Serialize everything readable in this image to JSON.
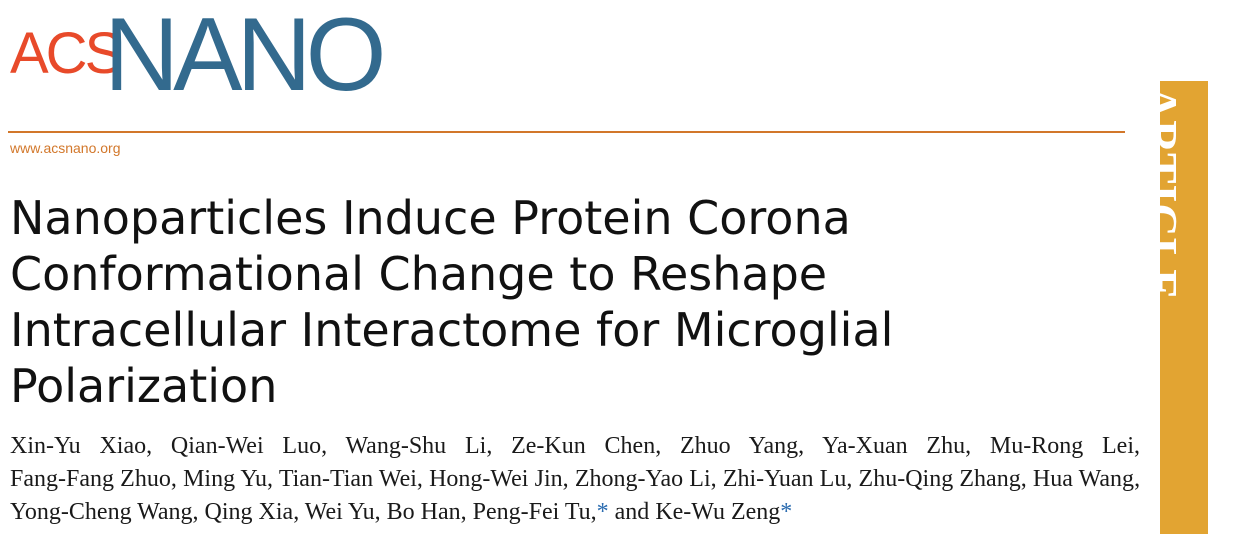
{
  "header": {
    "logo_acs": "ACS",
    "logo_nano": "NANO",
    "url": "www.acsnano.org",
    "section_tab": "ARTICLE"
  },
  "title_lines": [
    "Nanoparticles Induce Protein Corona",
    "Conformational Change to Reshape",
    "Intracellular Interactome for Microglial",
    "Polarization"
  ],
  "authors": [
    "Xin-Yu Xiao",
    "Qian-Wei Luo",
    "Wang-Shu Li",
    "Ze-Kun Chen",
    "Zhuo Yang",
    "Ya-Xuan Zhu",
    "Mu-Rong Lei",
    "Fang-Fang Zhuo",
    "Ming Yu",
    "Tian-Tian Wei",
    "Hong-Wei Jin",
    "Zhong-Yao Li",
    "Zhi-Yuan Lu",
    "Zhu-Qing Zhang",
    "Hua Wang",
    "Yong-Cheng Wang",
    "Qing Xia",
    "Wei Yu",
    "Bo Han",
    "Peng-Fei Tu",
    "Ke-Wu Zeng"
  ],
  "author_conjunction": "and",
  "corresponding_mark": "*"
}
